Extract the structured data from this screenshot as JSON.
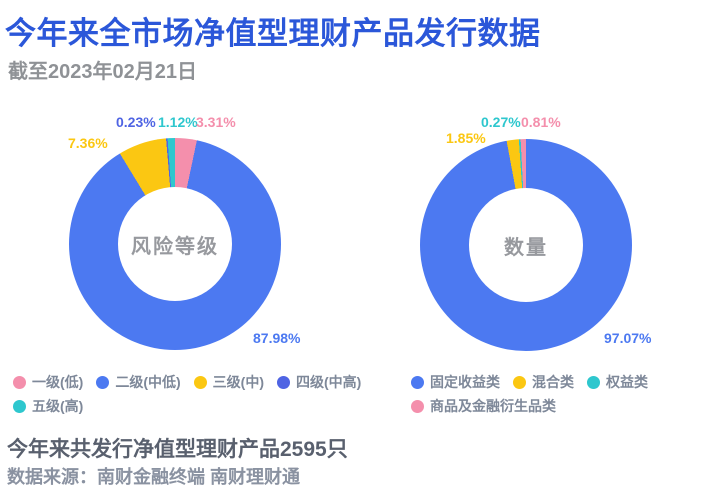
{
  "header": {
    "title": "今年来全市场净值型理财产品发行数据",
    "subtitle": "截至2023年02月21日"
  },
  "summary": {
    "total_issued": 2595
  },
  "footer": {
    "line1": "今年来共发行净值型理财产品2595只",
    "line2": "数据来源：南财金融终端 南财理财通"
  },
  "chart_data": [
    {
      "type": "pie",
      "donut": true,
      "title": "风险等级",
      "legend_position": "bottom",
      "start_angle": "top",
      "direction": "clockwise",
      "categories": [
        "一级(低)",
        "二级(中低)",
        "三级(中)",
        "四级(中高)",
        "五级(高)"
      ],
      "values": [
        3.31,
        87.98,
        7.36,
        0.23,
        1.12
      ],
      "labels": [
        "3.31%",
        "87.98%",
        "7.36%",
        "0.23%",
        "1.12%"
      ],
      "colors": [
        "#F48FAC",
        "#4C79F1",
        "#FBC712",
        "#4F64E3",
        "#2EC7CE"
      ]
    },
    {
      "type": "pie",
      "donut": true,
      "title": "数量",
      "legend_position": "bottom",
      "start_angle": "top",
      "direction": "clockwise",
      "categories": [
        "固定收益类",
        "混合类",
        "权益类",
        "商品及金融衍生品类"
      ],
      "values": [
        97.07,
        1.85,
        0.27,
        0.81
      ],
      "labels": [
        "97.07%",
        "1.85%",
        "0.27%",
        "0.81%"
      ],
      "colors": [
        "#4C79F1",
        "#FBC712",
        "#2EC7CE",
        "#F48FAC"
      ]
    }
  ]
}
